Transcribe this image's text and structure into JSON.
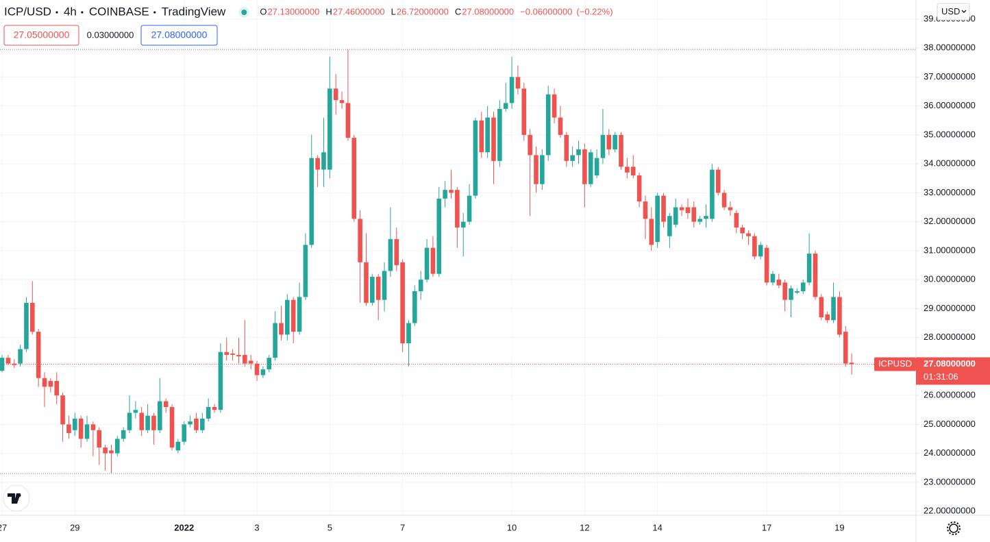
{
  "header": {
    "symbol": "ICP/USD",
    "interval": "4h",
    "exchange": "COINBASE",
    "source": "TradingView",
    "fields": [
      {
        "key": "O",
        "value": "27.13000000"
      },
      {
        "key": "H",
        "value": "27.46000000"
      },
      {
        "key": "L",
        "value": "26.72000000"
      },
      {
        "key": "C",
        "value": "27.08000000"
      }
    ],
    "change": "−0.06000000",
    "change_pct": "(−0.22%)"
  },
  "quote": {
    "bid": "27.05000000",
    "spread": "0.03000000",
    "ask": "27.08000000"
  },
  "price_tag": {
    "symbol": "ICPUSD",
    "value_label": "27.08000000",
    "countdown": "01:31:06"
  },
  "currency_button": "USD",
  "chart_data": {
    "type": "candlestick",
    "up_color": "#26a69a",
    "down_color": "#ef5350",
    "grid": true,
    "xlim": [
      -0.34,
      150.6
    ],
    "ylim": [
      21.86,
      39.66
    ],
    "xticks": [
      {
        "value": 0,
        "label": "27"
      },
      {
        "value": 12,
        "label": "29"
      },
      {
        "value": 30,
        "label": "2022"
      },
      {
        "value": 42,
        "label": "3"
      },
      {
        "value": 54,
        "label": "5"
      },
      {
        "value": 66,
        "label": "7"
      },
      {
        "value": 84,
        "label": "10"
      },
      {
        "value": 96,
        "label": "12"
      },
      {
        "value": 108,
        "label": "14"
      },
      {
        "value": 126,
        "label": "17"
      },
      {
        "value": 138,
        "label": "19"
      }
    ],
    "yticks": [
      {
        "value": 22,
        "label": "22.00000000"
      },
      {
        "value": 23,
        "label": "23.00000000"
      },
      {
        "value": 24,
        "label": "24.00000000"
      },
      {
        "value": 25,
        "label": "25.00000000"
      },
      {
        "value": 26,
        "label": "26.00000000"
      },
      {
        "value": 27,
        "label": "27.00000000"
      },
      {
        "value": 28,
        "label": "28.00000000"
      },
      {
        "value": 29,
        "label": "29.00000000"
      },
      {
        "value": 30,
        "label": "30.00000000"
      },
      {
        "value": 31,
        "label": "31.00000000"
      },
      {
        "value": 32,
        "label": "32.00000000"
      },
      {
        "value": 33,
        "label": "33.00000000"
      },
      {
        "value": 34,
        "label": "34.00000000"
      },
      {
        "value": 35,
        "label": "35.00000000"
      },
      {
        "value": 36,
        "label": "36.00000000"
      },
      {
        "value": 37,
        "label": "37.00000000"
      },
      {
        "value": 38,
        "label": "38.00000000"
      },
      {
        "value": 39,
        "label": "39.00000000"
      }
    ],
    "reference_lines": [
      37.95,
      23.3
    ],
    "open": [
      26.85,
      27.3,
      27.1,
      27.1,
      27.6,
      29.2,
      28.2,
      26.6,
      26.5,
      26.5,
      26.0,
      25.0,
      24.8,
      25.2,
      24.5,
      25.0,
      24.8,
      24.2,
      24.1,
      24.0,
      24.5,
      24.8,
      25.4,
      25.4,
      24.8,
      25.3,
      24.8,
      25.8,
      25.6,
      24.1,
      24.4,
      25.0,
      25.2,
      24.8,
      25.2,
      25.6,
      25.5,
      27.5,
      27.45,
      27.4,
      27.4,
      27.2,
      27.1,
      26.7,
      26.9,
      27.3,
      28.5,
      28.1,
      29.3,
      28.2,
      29.4,
      31.2,
      34.2,
      33.8,
      33.8,
      36.6,
      36.2,
      36.1,
      34.9,
      32.1,
      30.6,
      29.2,
      30.1,
      29.3,
      30.3,
      31.4,
      30.6,
      27.8,
      28.5,
      29.6,
      30.0,
      31.1,
      30.2,
      32.8,
      33.1,
      33.1,
      31.8,
      32.0,
      32.9,
      35.5,
      34.4,
      35.6,
      34.1,
      35.9,
      36.1,
      37.0,
      36.6,
      35.0,
      34.3,
      33.3,
      34.3,
      36.4,
      35.6,
      35.0,
      34.1,
      34.3,
      34.5,
      33.3,
      33.6,
      34.2,
      35.0,
      34.5,
      35.0,
      33.9,
      33.9,
      33.6,
      32.7,
      32.1,
      31.3,
      32.9,
      31.5,
      31.9,
      32.5,
      32.5,
      32.5,
      32.0,
      32.1,
      32.1,
      33.8,
      33.0,
      32.5,
      32.3,
      31.8,
      31.6,
      31.5,
      30.8,
      31.1,
      29.9,
      30.0,
      29.9,
      29.3,
      29.55,
      29.6,
      29.9,
      30.9,
      29.4,
      28.8,
      28.6,
      29.4,
      28.2,
      27.13
    ],
    "high": [
      27.4,
      27.4,
      27.25,
      27.75,
      29.4,
      29.95,
      28.3,
      26.8,
      26.6,
      26.8,
      26.1,
      25.3,
      25.4,
      25.3,
      25.3,
      25.1,
      24.9,
      24.3,
      24.3,
      24.6,
      24.9,
      26.0,
      25.8,
      25.6,
      25.7,
      25.4,
      26.6,
      25.9,
      25.7,
      24.5,
      25.1,
      25.3,
      25.4,
      25.4,
      25.9,
      25.7,
      27.8,
      28.0,
      27.6,
      28.0,
      28.6,
      27.4,
      27.2,
      27.0,
      27.4,
      28.9,
      29.1,
      29.5,
      29.4,
      29.9,
      31.6,
      35.0,
      34.3,
      35.6,
      37.7,
      37.1,
      36.5,
      37.95,
      35.0,
      32.4,
      31.6,
      30.2,
      30.2,
      30.6,
      32.5,
      31.8,
      30.7,
      28.6,
      29.8,
      30.3,
      31.4,
      31.5,
      33.2,
      33.4,
      33.8,
      33.2,
      32.3,
      33.3,
      35.6,
      35.8,
      36.0,
      35.8,
      36.2,
      36.8,
      37.7,
      37.4,
      36.8,
      35.2,
      34.6,
      34.5,
      36.7,
      36.6,
      36.0,
      35.1,
      34.6,
      34.8,
      34.7,
      34.5,
      34.5,
      35.9,
      35.2,
      35.1,
      35.1,
      34.2,
      34.3,
      33.7,
      32.9,
      32.5,
      33.0,
      33.0,
      32.3,
      32.8,
      32.6,
      32.8,
      32.7,
      32.2,
      32.6,
      34.0,
      33.9,
      33.1,
      32.7,
      32.4,
      31.9,
      31.7,
      31.6,
      31.3,
      31.2,
      30.3,
      30.2,
      30.0,
      29.8,
      29.7,
      30.0,
      31.6,
      31.0,
      29.5,
      28.9,
      29.9,
      29.6,
      28.4,
      27.46
    ],
    "low": [
      26.8,
      27.05,
      26.95,
      27.0,
      27.5,
      28.1,
      26.3,
      25.6,
      26.1,
      25.7,
      24.4,
      24.5,
      24.6,
      24.2,
      24.4,
      23.9,
      23.6,
      23.4,
      23.3,
      23.9,
      24.4,
      24.7,
      25.2,
      24.6,
      24.7,
      24.3,
      24.7,
      25.4,
      24.1,
      24.0,
      24.3,
      24.9,
      24.7,
      24.7,
      25.1,
      25.4,
      25.4,
      27.2,
      27.2,
      27.1,
      27.0,
      26.9,
      26.5,
      26.6,
      26.8,
      27.2,
      27.9,
      27.9,
      27.8,
      28.1,
      29.3,
      31.1,
      33.2,
      33.2,
      33.5,
      35.7,
      35.9,
      34.8,
      32.0,
      29.2,
      29.1,
      29.1,
      28.6,
      28.9,
      30.1,
      30.3,
      27.5,
      27.0,
      28.4,
      29.3,
      29.9,
      30.1,
      30.1,
      32.5,
      32.8,
      31.1,
      30.8,
      31.9,
      32.8,
      34.2,
      34.2,
      33.3,
      33.9,
      35.8,
      35.9,
      36.4,
      34.8,
      32.2,
      33.0,
      33.1,
      34.1,
      35.4,
      34.9,
      33.9,
      33.9,
      34.0,
      32.5,
      33.2,
      33.5,
      34.0,
      34.3,
      34.4,
      33.8,
      33.5,
      33.5,
      32.5,
      31.4,
      31.0,
      31.1,
      31.8,
      31.1,
      31.8,
      32.2,
      32.1,
      31.8,
      31.9,
      31.8,
      32.0,
      32.9,
      32.4,
      32.2,
      31.6,
      31.4,
      31.2,
      30.7,
      30.7,
      29.8,
      29.8,
      29.7,
      28.9,
      28.7,
      29.5,
      29.5,
      29.8,
      29.3,
      28.6,
      28.5,
      28.5,
      28.0,
      27.0,
      26.72
    ],
    "close": [
      27.3,
      27.1,
      27.05,
      27.6,
      29.2,
      28.2,
      26.6,
      26.3,
      26.3,
      26.0,
      25.0,
      24.7,
      25.2,
      24.5,
      25.0,
      24.8,
      24.2,
      24.0,
      24.0,
      24.5,
      24.8,
      25.4,
      25.5,
      24.8,
      25.3,
      24.8,
      25.8,
      25.6,
      24.2,
      24.4,
      25.0,
      25.1,
      24.8,
      25.2,
      25.6,
      25.5,
      27.5,
      27.4,
      27.4,
      27.35,
      27.1,
      27.1,
      26.7,
      26.9,
      27.3,
      28.5,
      28.1,
      29.3,
      28.2,
      29.4,
      31.2,
      34.2,
      33.8,
      34.4,
      36.6,
      36.2,
      36.1,
      34.9,
      32.1,
      30.6,
      29.2,
      30.1,
      29.3,
      30.3,
      31.4,
      30.5,
      27.8,
      28.5,
      29.6,
      30.0,
      31.1,
      30.2,
      32.8,
      33.1,
      33.0,
      31.8,
      32.0,
      32.9,
      35.5,
      34.4,
      35.6,
      34.1,
      35.9,
      36.1,
      37.0,
      36.6,
      35.0,
      34.3,
      33.3,
      34.3,
      36.4,
      35.6,
      35.0,
      34.1,
      34.3,
      34.5,
      33.3,
      34.4,
      34.2,
      35.0,
      34.5,
      35.0,
      33.9,
      33.7,
      33.6,
      32.7,
      32.1,
      31.2,
      32.9,
      32.0,
      32.2,
      32.5,
      32.4,
      32.3,
      32.0,
      32.1,
      32.2,
      33.8,
      33.0,
      32.5,
      32.4,
      31.8,
      31.6,
      31.5,
      30.8,
      31.2,
      29.9,
      30.2,
      29.8,
      29.3,
      29.7,
      29.6,
      29.9,
      30.9,
      29.4,
      28.7,
      28.6,
      29.4,
      28.1,
      27.1,
      27.08
    ]
  }
}
